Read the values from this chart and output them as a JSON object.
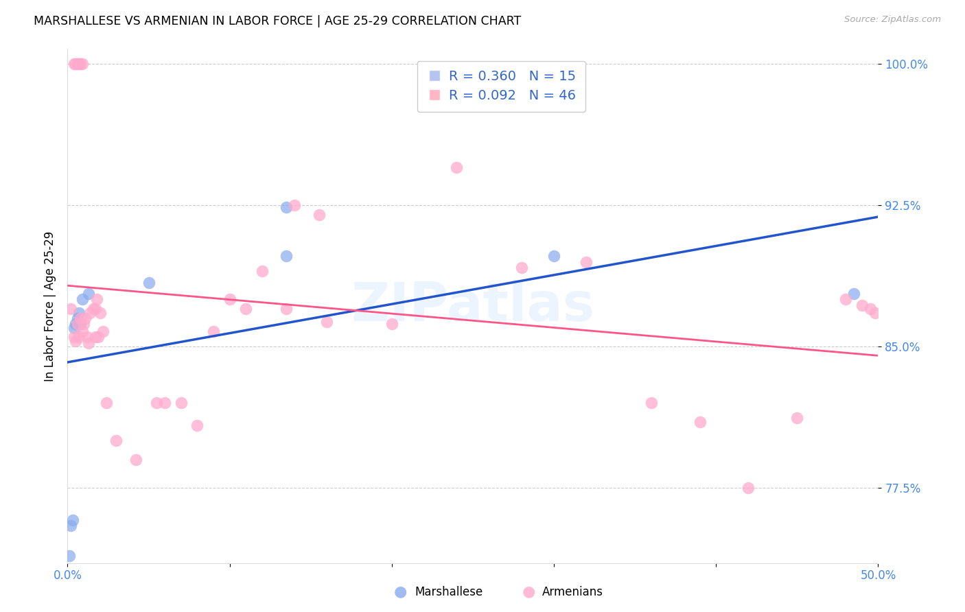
{
  "title": "MARSHALLESE VS ARMENIAN IN LABOR FORCE | AGE 25-29 CORRELATION CHART",
  "source_text": "Source: ZipAtlas.com",
  "ylabel": "In Labor Force | Age 25-29",
  "xlim": [
    0.0,
    0.5
  ],
  "ylim": [
    0.735,
    1.008
  ],
  "yticks": [
    0.775,
    0.85,
    0.925,
    1.0
  ],
  "ytick_labels": [
    "77.5%",
    "85.0%",
    "92.5%",
    "100.0%"
  ],
  "xticks": [
    0.0,
    0.1,
    0.2,
    0.3,
    0.4,
    0.5
  ],
  "xtick_labels_show": [
    "0.0%",
    "50.0%"
  ],
  "xticks_show": [
    0.0,
    0.5
  ],
  "legend_r1": "R = 0.360",
  "legend_n1": "N = 15",
  "legend_r2": "R = 0.092",
  "legend_n2": "N = 46",
  "blue_scatter": "#88aaee",
  "pink_scatter": "#ffaacc",
  "trend_blue": "#2255cc",
  "trend_pink": "#ff5588",
  "axis_label_color": "#4488ee",
  "marshallese_x": [
    0.001,
    0.002,
    0.003,
    0.004,
    0.005,
    0.006,
    0.007,
    0.008,
    0.009,
    0.013,
    0.05,
    0.135,
    0.135,
    0.3,
    0.485
  ],
  "marshallese_y": [
    0.739,
    0.755,
    0.758,
    0.86,
    0.862,
    0.865,
    0.868,
    0.862,
    0.875,
    0.878,
    0.884,
    0.924,
    0.898,
    0.898,
    0.878
  ],
  "armenians_x": [
    0.002,
    0.004,
    0.005,
    0.006,
    0.007,
    0.008,
    0.009,
    0.01,
    0.011,
    0.012,
    0.013,
    0.014,
    0.016,
    0.017,
    0.017,
    0.018,
    0.019,
    0.02,
    0.022,
    0.024,
    0.03,
    0.042,
    0.055,
    0.07,
    0.09,
    0.11,
    0.135,
    0.155,
    0.2,
    0.24,
    0.28,
    0.32,
    0.36,
    0.39,
    0.42,
    0.45,
    0.48,
    0.49,
    0.495,
    0.498,
    0.06,
    0.08,
    0.1,
    0.12,
    0.14,
    0.16
  ],
  "armenians_y": [
    0.87,
    0.855,
    0.853,
    0.862,
    0.855,
    0.865,
    0.858,
    0.862,
    0.865,
    0.855,
    0.852,
    0.868,
    0.87,
    0.855,
    0.87,
    0.875,
    0.855,
    0.868,
    0.858,
    0.82,
    0.8,
    0.79,
    0.82,
    0.82,
    0.858,
    0.87,
    0.87,
    0.92,
    0.862,
    0.945,
    0.892,
    0.895,
    0.82,
    0.81,
    0.775,
    0.812,
    0.875,
    0.872,
    0.87,
    0.868,
    0.82,
    0.808,
    0.875,
    0.89,
    0.925,
    0.863
  ],
  "armenians_top_x": [
    0.004,
    0.005,
    0.006,
    0.007,
    0.008,
    0.009
  ],
  "armenians_top_y": [
    1.0,
    1.0,
    1.0,
    1.0,
    1.0,
    1.0
  ],
  "watermark": "ZIPatlas",
  "legend_series": [
    "Marshallese",
    "Armenians"
  ]
}
